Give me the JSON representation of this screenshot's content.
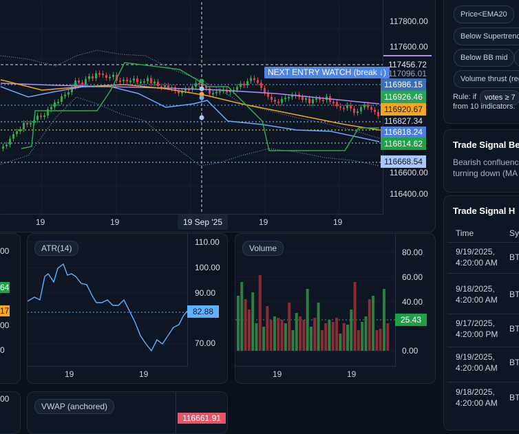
{
  "main_chart": {
    "price_levels": [
      "117800.00",
      "117600.00",
      "116400.00"
    ],
    "badges": [
      "117456.72",
      "117096.01",
      "116986.15",
      "116926.46",
      "116920.67",
      "116827.34",
      "116818.24",
      "116814.62",
      "116668.54"
    ],
    "badge_colors": [
      "#0f1623",
      "#0f1623",
      "#3d6fb5",
      "#29a35a",
      "#f5a623",
      "#a8c7fa",
      "#7aa7ff",
      "#22a048",
      "#a8c7fa"
    ],
    "price_near_labels": [
      "116600.00"
    ],
    "entry_watch_label": "NEXT ENTRY WATCH (break ↓)",
    "time_labels": [
      "19",
      "19",
      "19",
      "19"
    ],
    "crosshair_time": "19 Sep '25"
  },
  "atr_panel": {
    "title": "ATR(14)",
    "levels": [
      "110.00",
      "100.00",
      "90.00",
      "70.00"
    ],
    "current_value": "82.88",
    "time_labels": [
      "19",
      "19"
    ]
  },
  "volume_panel": {
    "title": "Volume",
    "levels": [
      "80.00",
      "60.00",
      "40.00",
      "0.00"
    ],
    "current_value": "25.43",
    "time_labels": [
      "19",
      "19"
    ]
  },
  "left_panel": {
    "levels": [
      "00",
      "00",
      "00",
      "0"
    ],
    "badges": [
      "64",
      "17"
    ]
  },
  "vwap_panel": {
    "title": "VWAP (anchored)",
    "value": "116661.91"
  },
  "bottom_left_label": "00",
  "right_sidebar": {
    "chips": [
      "Price<EMA20",
      "Below Supertrend",
      "Below BB mid",
      "Volume thrust (rec"
    ],
    "rule_prefix": "Rule: if",
    "rule_votes": "votes ≥ 7",
    "rule_suffix": "from 10 indicators.",
    "signal_title": "Trade Signal Be",
    "signal_text_line1": "Bearish confluence",
    "signal_text_line2": "turning down (MA",
    "history_title": "Trade Signal H",
    "history_columns": [
      "Time",
      "Sy"
    ],
    "history_rows": [
      {
        "date": "9/19/2025,",
        "time": "4:20:00 AM",
        "sym": "BT"
      },
      {
        "date": "9/18/2025,",
        "time": "4:20:00 AM",
        "sym": "BT"
      },
      {
        "date": "9/17/2025,",
        "time": "4:20:00 PM",
        "sym": "BT"
      },
      {
        "date": "9/19/2025,",
        "time": "4:20:00 AM",
        "sym": "BT"
      },
      {
        "date": "9/18/2025,",
        "time": "4:20:00 AM",
        "sym": "BT"
      }
    ]
  }
}
